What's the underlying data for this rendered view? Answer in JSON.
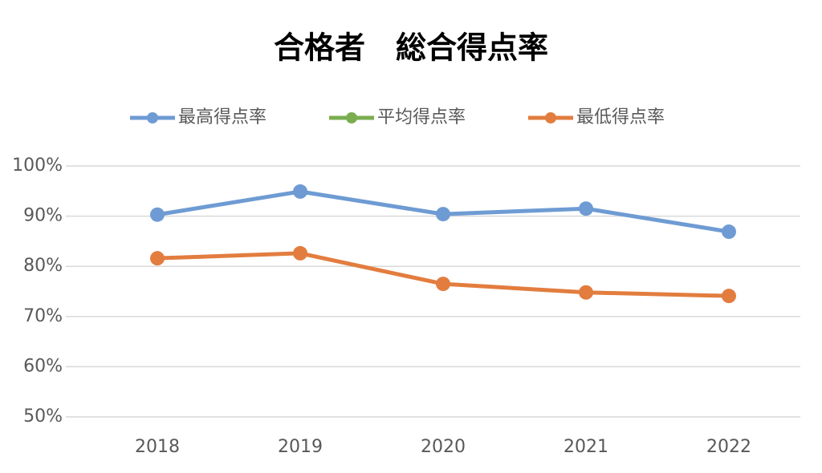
{
  "chart_data": {
    "type": "line",
    "title": "合格者　総合得点率",
    "categories": [
      "2018",
      "2019",
      "2020",
      "2021",
      "2022"
    ],
    "series": [
      {
        "name": "最高得点率",
        "color": "#6e9bd3",
        "values": [
          90.3,
          94.9,
          90.4,
          91.5,
          86.9
        ]
      },
      {
        "name": "平均得点率",
        "color": "#7aad4f",
        "values": [
          null,
          null,
          null,
          null,
          null
        ]
      },
      {
        "name": "最低得点率",
        "color": "#e27d3f",
        "values": [
          81.6,
          82.6,
          76.5,
          74.8,
          74.1
        ]
      }
    ],
    "ylim": [
      50,
      100
    ],
    "yticks": [
      {
        "value": 50,
        "label": "50%"
      },
      {
        "value": 60,
        "label": "60%"
      },
      {
        "value": 70,
        "label": "70%"
      },
      {
        "value": 80,
        "label": "80%"
      },
      {
        "value": 90,
        "label": "90%"
      },
      {
        "value": 100,
        "label": "100%"
      }
    ],
    "grid": true,
    "legend": "top"
  }
}
